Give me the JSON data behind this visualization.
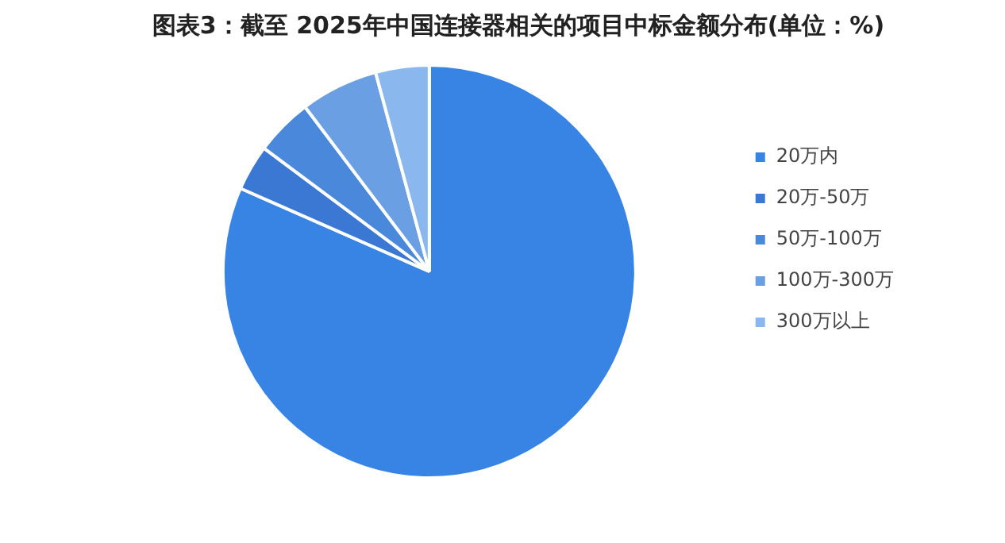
{
  "chart_data": {
    "type": "pie",
    "title": "图表3：截至 2025年中国连接器相关的项目中标金额分布(单位：%)",
    "categories": [
      "20万内",
      "20万-50万",
      "50万-100万",
      "100万-300万",
      "300万以上"
    ],
    "values": [
      81.6,
      3.6,
      4.5,
      6.1,
      4.2
    ],
    "colors": [
      "#3784e4",
      "#3b78d4",
      "#4a88dc",
      "#6a9fe4",
      "#8ab8ee"
    ],
    "legend": "right"
  }
}
